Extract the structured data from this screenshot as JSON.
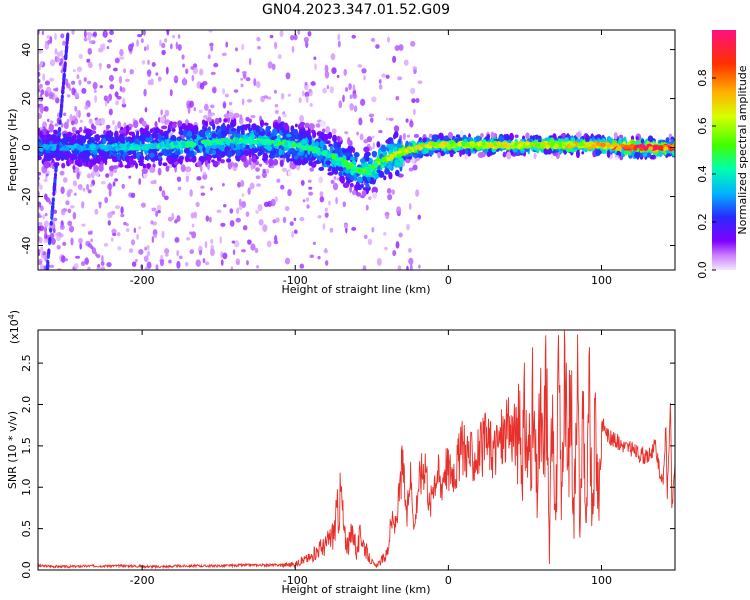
{
  "title": "GN04.2023.347.01.52.G09",
  "colors": {
    "snr_line": "#e8302a",
    "axis": "#000000",
    "background": "#ffffff"
  },
  "chart_data": [
    {
      "type": "heatmap",
      "xlabel": "Height of straight line (km)",
      "ylabel": "Frequency (Hz)",
      "xlim": [
        -268,
        148
      ],
      "ylim": [
        -50,
        48
      ],
      "x_ticks": [
        {
          "value": -200,
          "label": "-200"
        },
        {
          "value": -100,
          "label": "-100"
        },
        {
          "value": 0,
          "label": "0"
        },
        {
          "value": 100,
          "label": "100"
        }
      ],
      "y_ticks": [
        {
          "value": -40,
          "label": "-40"
        },
        {
          "value": -20,
          "label": "-20"
        },
        {
          "value": 0,
          "label": "0"
        },
        {
          "value": 20,
          "label": "20"
        },
        {
          "value": 40,
          "label": "40"
        }
      ],
      "ridge": {
        "x": [
          -268,
          -240,
          -200,
          -160,
          -130,
          -110,
          -90,
          -75,
          -60,
          -52,
          -45,
          -35,
          -25,
          -10,
          0,
          25,
          50,
          80,
          100,
          120,
          148
        ],
        "frequency": [
          0,
          0,
          0,
          2,
          3,
          2,
          0,
          -4,
          -9,
          -10,
          -6,
          -3,
          -1,
          1,
          1,
          1,
          1,
          1,
          1,
          0,
          0
        ],
        "amplitude": [
          0.3,
          0.32,
          0.38,
          0.45,
          0.42,
          0.45,
          0.42,
          0.45,
          0.48,
          0.5,
          0.55,
          0.6,
          0.65,
          0.68,
          0.62,
          0.62,
          0.65,
          0.66,
          0.7,
          0.95,
          0.8
        ]
      },
      "colorbar": {
        "label": "Normalized spectral amplitude",
        "range": [
          0,
          1
        ],
        "ticks": [
          {
            "value": 0.0,
            "label": "0.0"
          },
          {
            "value": 0.2,
            "label": "0.2"
          },
          {
            "value": 0.4,
            "label": "0.4"
          },
          {
            "value": 0.6,
            "label": "0.6"
          },
          {
            "value": 0.8,
            "label": "0.8"
          }
        ]
      }
    },
    {
      "type": "line",
      "xlabel": "Height of straight line (km)",
      "ylabel": "SNR (10 * v/v)",
      "y_multiplier": "(x10",
      "y_multiplier_exp": "4",
      "y_multiplier_close": ")",
      "xlim": [
        -268,
        148
      ],
      "ylim": [
        0,
        2.9
      ],
      "x_ticks": [
        {
          "value": -200,
          "label": "-200"
        },
        {
          "value": -100,
          "label": "-100"
        },
        {
          "value": 0,
          "label": "0"
        },
        {
          "value": 100,
          "label": "100"
        }
      ],
      "y_ticks": [
        {
          "value": 0.0,
          "label": "0.0"
        },
        {
          "value": 0.5,
          "label": "0.5"
        },
        {
          "value": 1.0,
          "label": "1.0"
        },
        {
          "value": 1.5,
          "label": "1.5"
        },
        {
          "value": 2.0,
          "label": "2.0"
        },
        {
          "value": 2.5,
          "label": "2.5"
        }
      ],
      "series": [
        {
          "x": [
            -268,
            -250,
            -230,
            -210,
            -190,
            -170,
            -150,
            -130,
            -110,
            -100,
            -95,
            -90,
            -85,
            -80,
            -75,
            -70,
            -68,
            -65,
            -62,
            -60,
            -57,
            -55,
            -52,
            -48,
            -45,
            -40,
            -37,
            -35,
            -32,
            -30,
            -27,
            -25,
            -22,
            -20,
            -17,
            -15,
            -12,
            -10,
            -7,
            -5,
            -2,
            0,
            5,
            10,
            15,
            20,
            25,
            30,
            35,
            40,
            45,
            48,
            50,
            52,
            55,
            58,
            60,
            62,
            64,
            66,
            68,
            70,
            72,
            74,
            76,
            78,
            80,
            82,
            84,
            86,
            88,
            90,
            92,
            94,
            96,
            98,
            100,
            105,
            110,
            115,
            120,
            125,
            130,
            135,
            138,
            140,
            142,
            143,
            145,
            146,
            148
          ],
          "values": [
            0.05,
            0.04,
            0.05,
            0.05,
            0.04,
            0.05,
            0.05,
            0.06,
            0.06,
            0.07,
            0.12,
            0.15,
            0.25,
            0.3,
            0.45,
            0.92,
            0.4,
            0.3,
            0.5,
            0.2,
            0.45,
            0.3,
            0.15,
            0.05,
            0.08,
            0.2,
            0.6,
            0.5,
            0.9,
            1.3,
            0.6,
            1.2,
            0.5,
            1.0,
            1.2,
            1.35,
            0.7,
            1.1,
            1.2,
            1.0,
            1.3,
            1.2,
            1.25,
            1.5,
            1.35,
            1.4,
            1.55,
            1.45,
            1.6,
            1.7,
            1.65,
            1.4,
            1.85,
            1.3,
            1.9,
            0.9,
            1.95,
            1.2,
            2.5,
            0.1,
            2.55,
            0.6,
            2.2,
            0.8,
            2.5,
            1.1,
            2.3,
            0.5,
            2.9,
            0.3,
            2.2,
            0.4,
            2.1,
            0.5,
            1.9,
            0.8,
            1.8,
            1.6,
            1.55,
            1.5,
            1.45,
            1.4,
            1.35,
            1.5,
            1.2,
            1.0,
            1.7,
            0.9,
            2.0,
            0.7,
            1.3
          ]
        }
      ]
    }
  ]
}
